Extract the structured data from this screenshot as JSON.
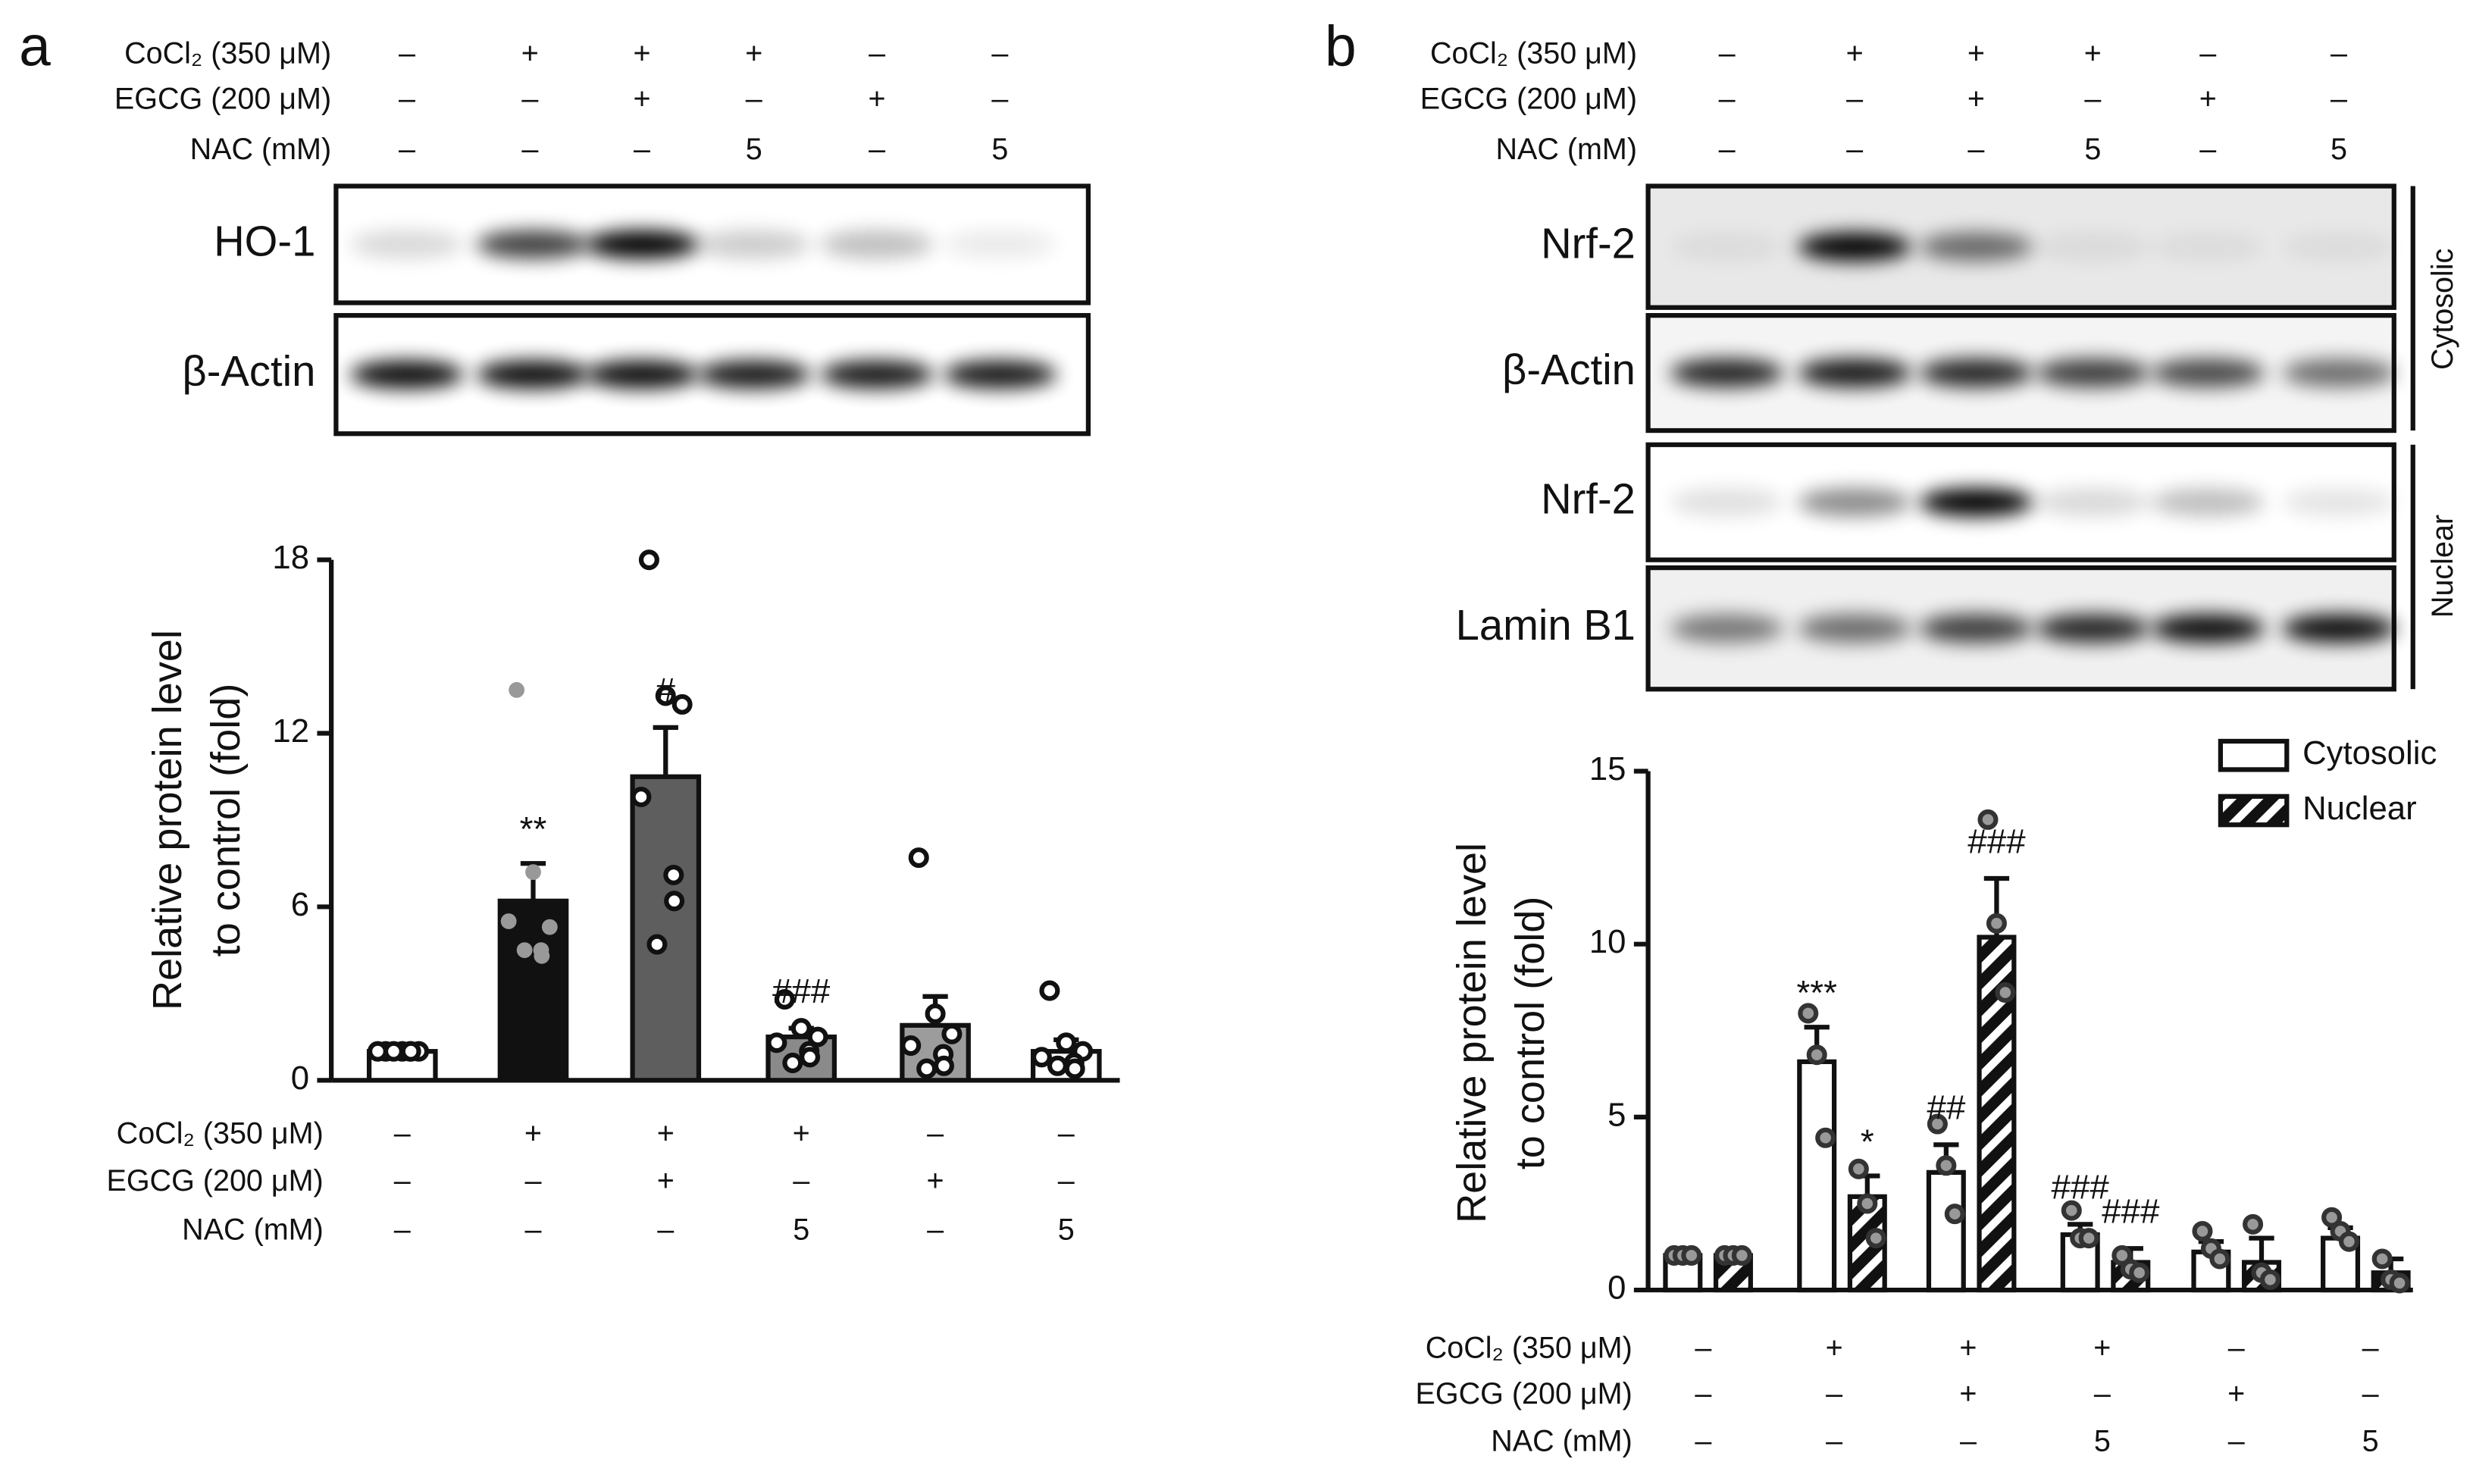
{
  "panel_labels": [
    "a",
    "b"
  ],
  "treatments": {
    "rows": [
      {
        "label": "CoCl₂ (350 μM)",
        "values": [
          "–",
          "+",
          "+",
          "+",
          "–",
          "–"
        ]
      },
      {
        "label": "EGCG (200 μM)",
        "values": [
          "–",
          "–",
          "+",
          "–",
          "+",
          "–"
        ]
      },
      {
        "label": "NAC (mM)",
        "values": [
          "–",
          "–",
          "–",
          "5",
          "–",
          "5"
        ]
      }
    ]
  },
  "blots": {
    "a": [
      "HO-1",
      "β-Actin"
    ],
    "b": [
      "Nrf-2",
      "β-Actin",
      "Nrf-2",
      "Lamin B1"
    ],
    "b_fractions": [
      "Cytosolic",
      "Nuclear"
    ]
  },
  "chart_data": [
    {
      "type": "bar",
      "ylabel": [
        "Relative protein level",
        "to control (fold)"
      ],
      "values": [
        1,
        6.2,
        10.5,
        1.5,
        1.9,
        1.0
      ],
      "errors": [
        0.1,
        1.3,
        1.7,
        0.3,
        1.0,
        0.4
      ],
      "colors": [
        "#ffffff",
        "#111111",
        "#5e5e5e",
        "#8a8a8a",
        "#9c9c9c",
        "#ffffff"
      ],
      "points": [
        [
          1,
          1,
          1,
          1,
          1,
          1,
          1
        ],
        [
          13.5,
          7.2,
          5.3,
          5.5,
          4.5,
          4.3,
          4.5
        ],
        [
          18,
          13.3,
          13.0,
          9.8,
          7.1,
          6.2,
          4.7
        ],
        [
          2.8,
          1.8,
          1.5,
          1.3,
          1.0,
          0.8,
          0.6
        ],
        [
          7.7,
          2.3,
          1.6,
          1.2,
          0.9,
          0.5,
          0.4
        ],
        [
          3.1,
          1.3,
          1.0,
          0.8,
          0.6,
          0.4,
          0.5
        ]
      ],
      "annotations": [
        null,
        "**",
        "#",
        "###",
        null,
        null
      ],
      "ylim": [
        0,
        18
      ],
      "yticks": [
        0,
        6,
        12,
        18
      ]
    },
    {
      "type": "grouped_bar",
      "ylabel": [
        "Relative protein level",
        "to control (fold)"
      ],
      "legend": "upper right",
      "series": [
        {
          "name": "Cytosolic",
          "color": "#ffffff",
          "hatch": false,
          "values": [
            1,
            6.6,
            3.4,
            1.6,
            1.1,
            1.5
          ],
          "errors": [
            0.1,
            1.0,
            0.8,
            0.3,
            0.3,
            0.3
          ],
          "points": [
            [
              1,
              1,
              1
            ],
            [
              8,
              6.8,
              4.4
            ],
            [
              4.8,
              3.6,
              2.2
            ],
            [
              2.3,
              1.5,
              1.5
            ],
            [
              1.7,
              1.2,
              0.9
            ],
            [
              2.1,
              1.7,
              1.4
            ]
          ],
          "annotations": [
            null,
            "***",
            "##",
            "###",
            null,
            null
          ]
        },
        {
          "name": "Nuclear",
          "color": "#111111",
          "hatch": true,
          "values": [
            1,
            2.7,
            10.2,
            0.8,
            0.8,
            0.5
          ],
          "errors": [
            0.1,
            0.6,
            1.7,
            0.4,
            0.7,
            0.4
          ],
          "points": [
            [
              1,
              1,
              1
            ],
            [
              3.5,
              2.5,
              1.5
            ],
            [
              13.6,
              10.6,
              8.6
            ],
            [
              1.0,
              0.6,
              0.5
            ],
            [
              1.9,
              0.5,
              0.3
            ],
            [
              0.9,
              0.3,
              0.2
            ]
          ],
          "annotations": [
            null,
            "*",
            "###",
            "###",
            null,
            null
          ]
        }
      ],
      "ylim": [
        0,
        15
      ],
      "yticks": [
        0,
        5,
        10,
        15
      ]
    }
  ]
}
